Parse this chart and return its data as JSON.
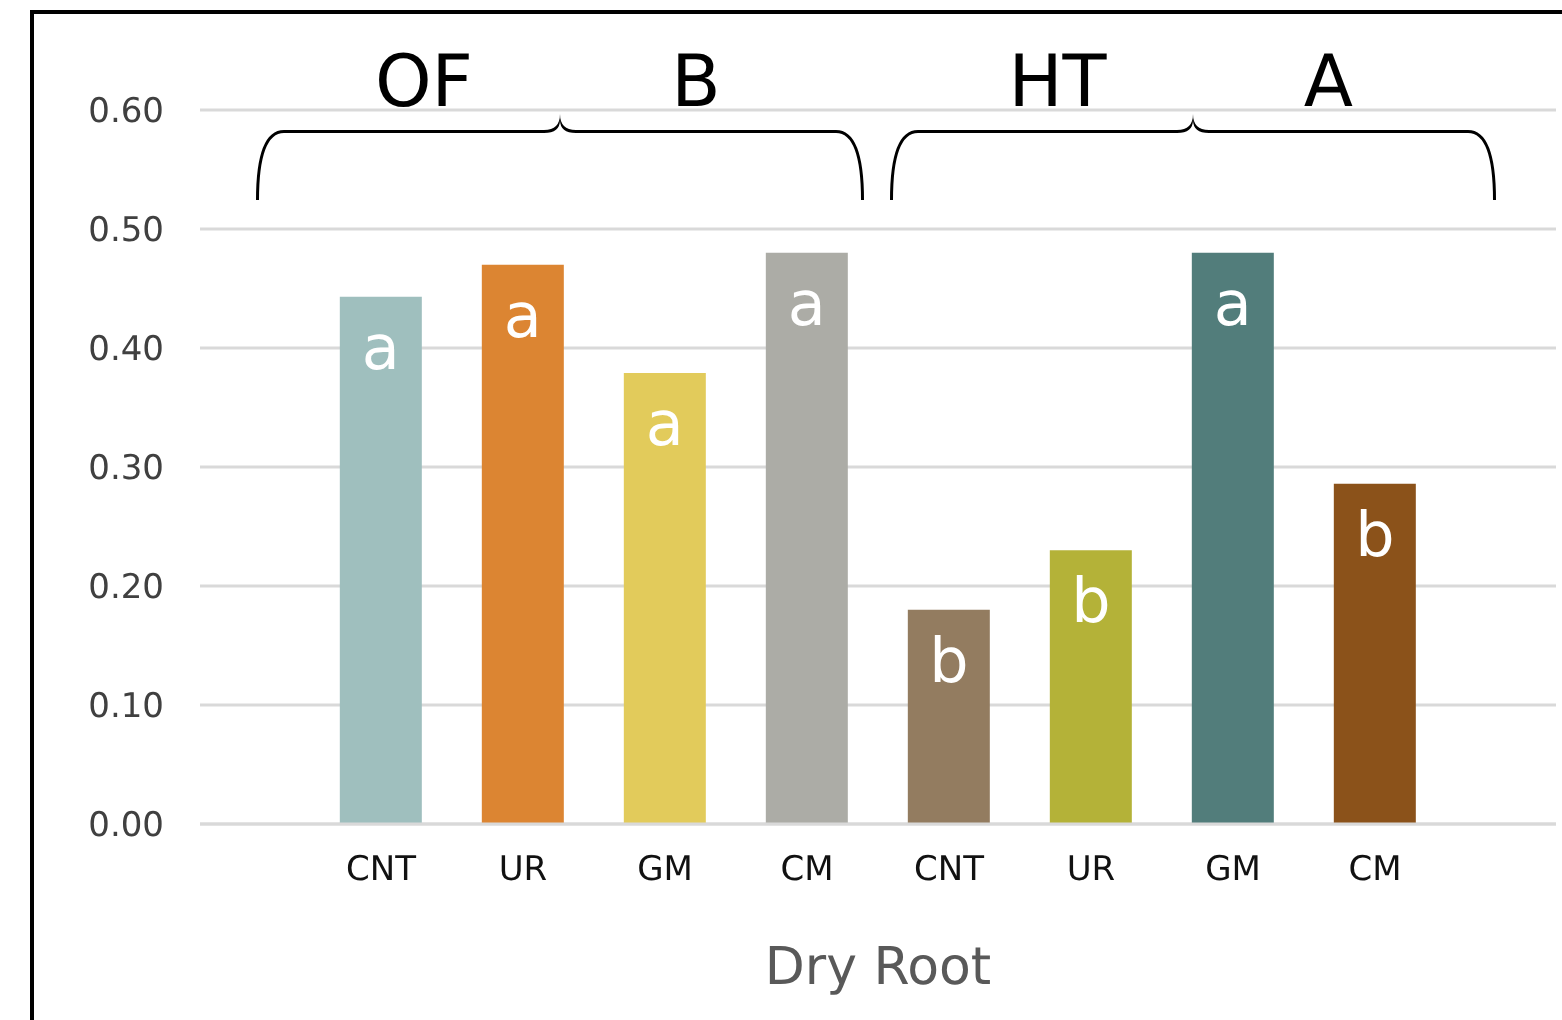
{
  "chart_data": {
    "type": "bar",
    "xlabel": "Dry Root",
    "categories": [
      "CNT",
      "UR",
      "GM",
      "CM",
      "CNT",
      "UR",
      "GM",
      "CM"
    ],
    "values": [
      0.443,
      0.47,
      0.379,
      0.48,
      0.18,
      0.23,
      0.48,
      0.286
    ],
    "colors": [
      "#9fbfbe",
      "#dc8532",
      "#e2cb5b",
      "#acaca6",
      "#937c60",
      "#b4b238",
      "#527d7b",
      "#8b521a"
    ],
    "value_labels": [
      "a",
      "a",
      "a",
      "a",
      "b",
      "b",
      "a",
      "b"
    ],
    "ylim": [
      0,
      0.6
    ],
    "yticks": [
      {
        "value": 0,
        "label": "0.00"
      },
      {
        "value": 0.1,
        "label": "0.10"
      },
      {
        "value": 0.2,
        "label": "0.20"
      },
      {
        "value": 0.3,
        "label": "0.30"
      },
      {
        "value": 0.4,
        "label": "0.40"
      },
      {
        "value": 0.5,
        "label": "0.50"
      },
      {
        "value": 0.6,
        "label": "0.60"
      }
    ],
    "grid": "y",
    "annotations": [
      "OF",
      "B",
      "HT",
      "A"
    ]
  }
}
